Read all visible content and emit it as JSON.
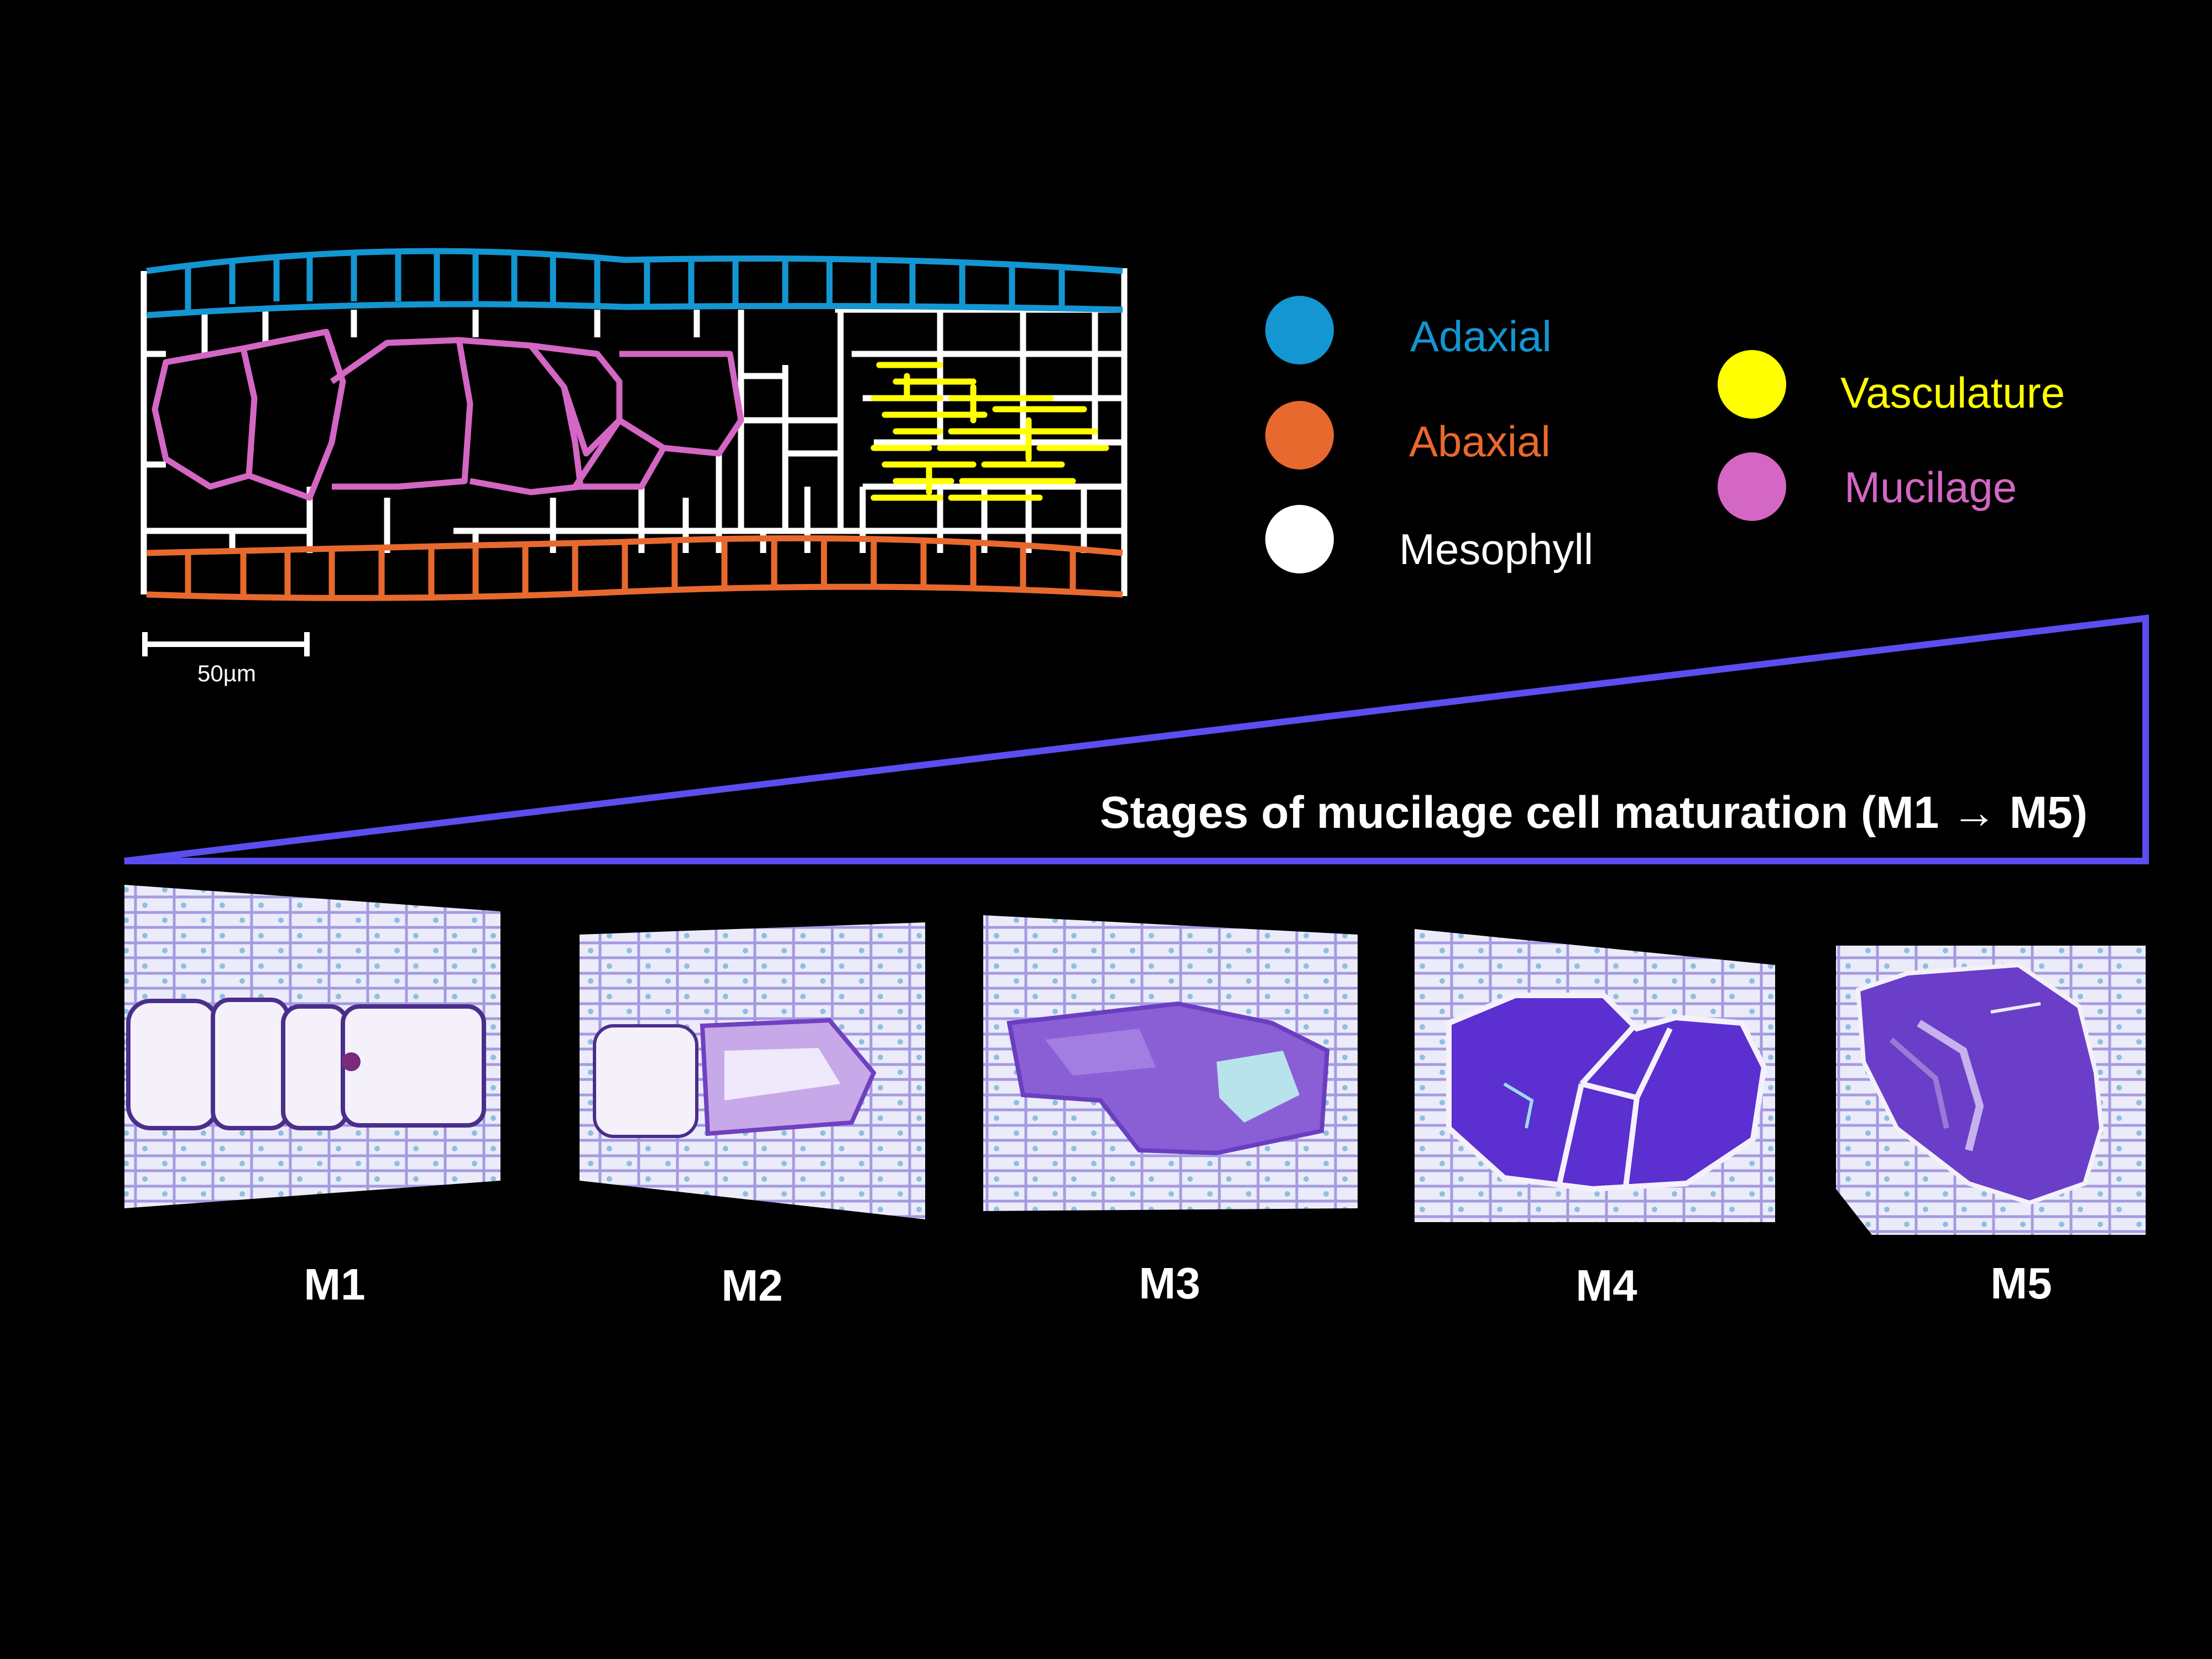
{
  "scale_bar": {
    "label": "50µm"
  },
  "legend": {
    "items": [
      {
        "label": "Adaxial",
        "color": "#1396d2",
        "icon": "circle-swatch"
      },
      {
        "label": "Abaxial",
        "color": "#e8692e",
        "icon": "circle-swatch"
      },
      {
        "label": "Mesophyll",
        "color": "#ffffff",
        "icon": "circle-swatch"
      },
      {
        "label": "Vasculature",
        "color": "#ffff00",
        "icon": "circle-swatch"
      },
      {
        "label": "Mucilage",
        "color": "#d466c4",
        "icon": "circle-swatch"
      }
    ]
  },
  "maturation": {
    "title": "Stages of mucilage cell maturation (M1 → M5)",
    "wedge_color": "#5b4ef0",
    "stages": [
      {
        "label": "M1"
      },
      {
        "label": "M2"
      },
      {
        "label": "M3"
      },
      {
        "label": "M4"
      },
      {
        "label": "M5"
      }
    ]
  }
}
